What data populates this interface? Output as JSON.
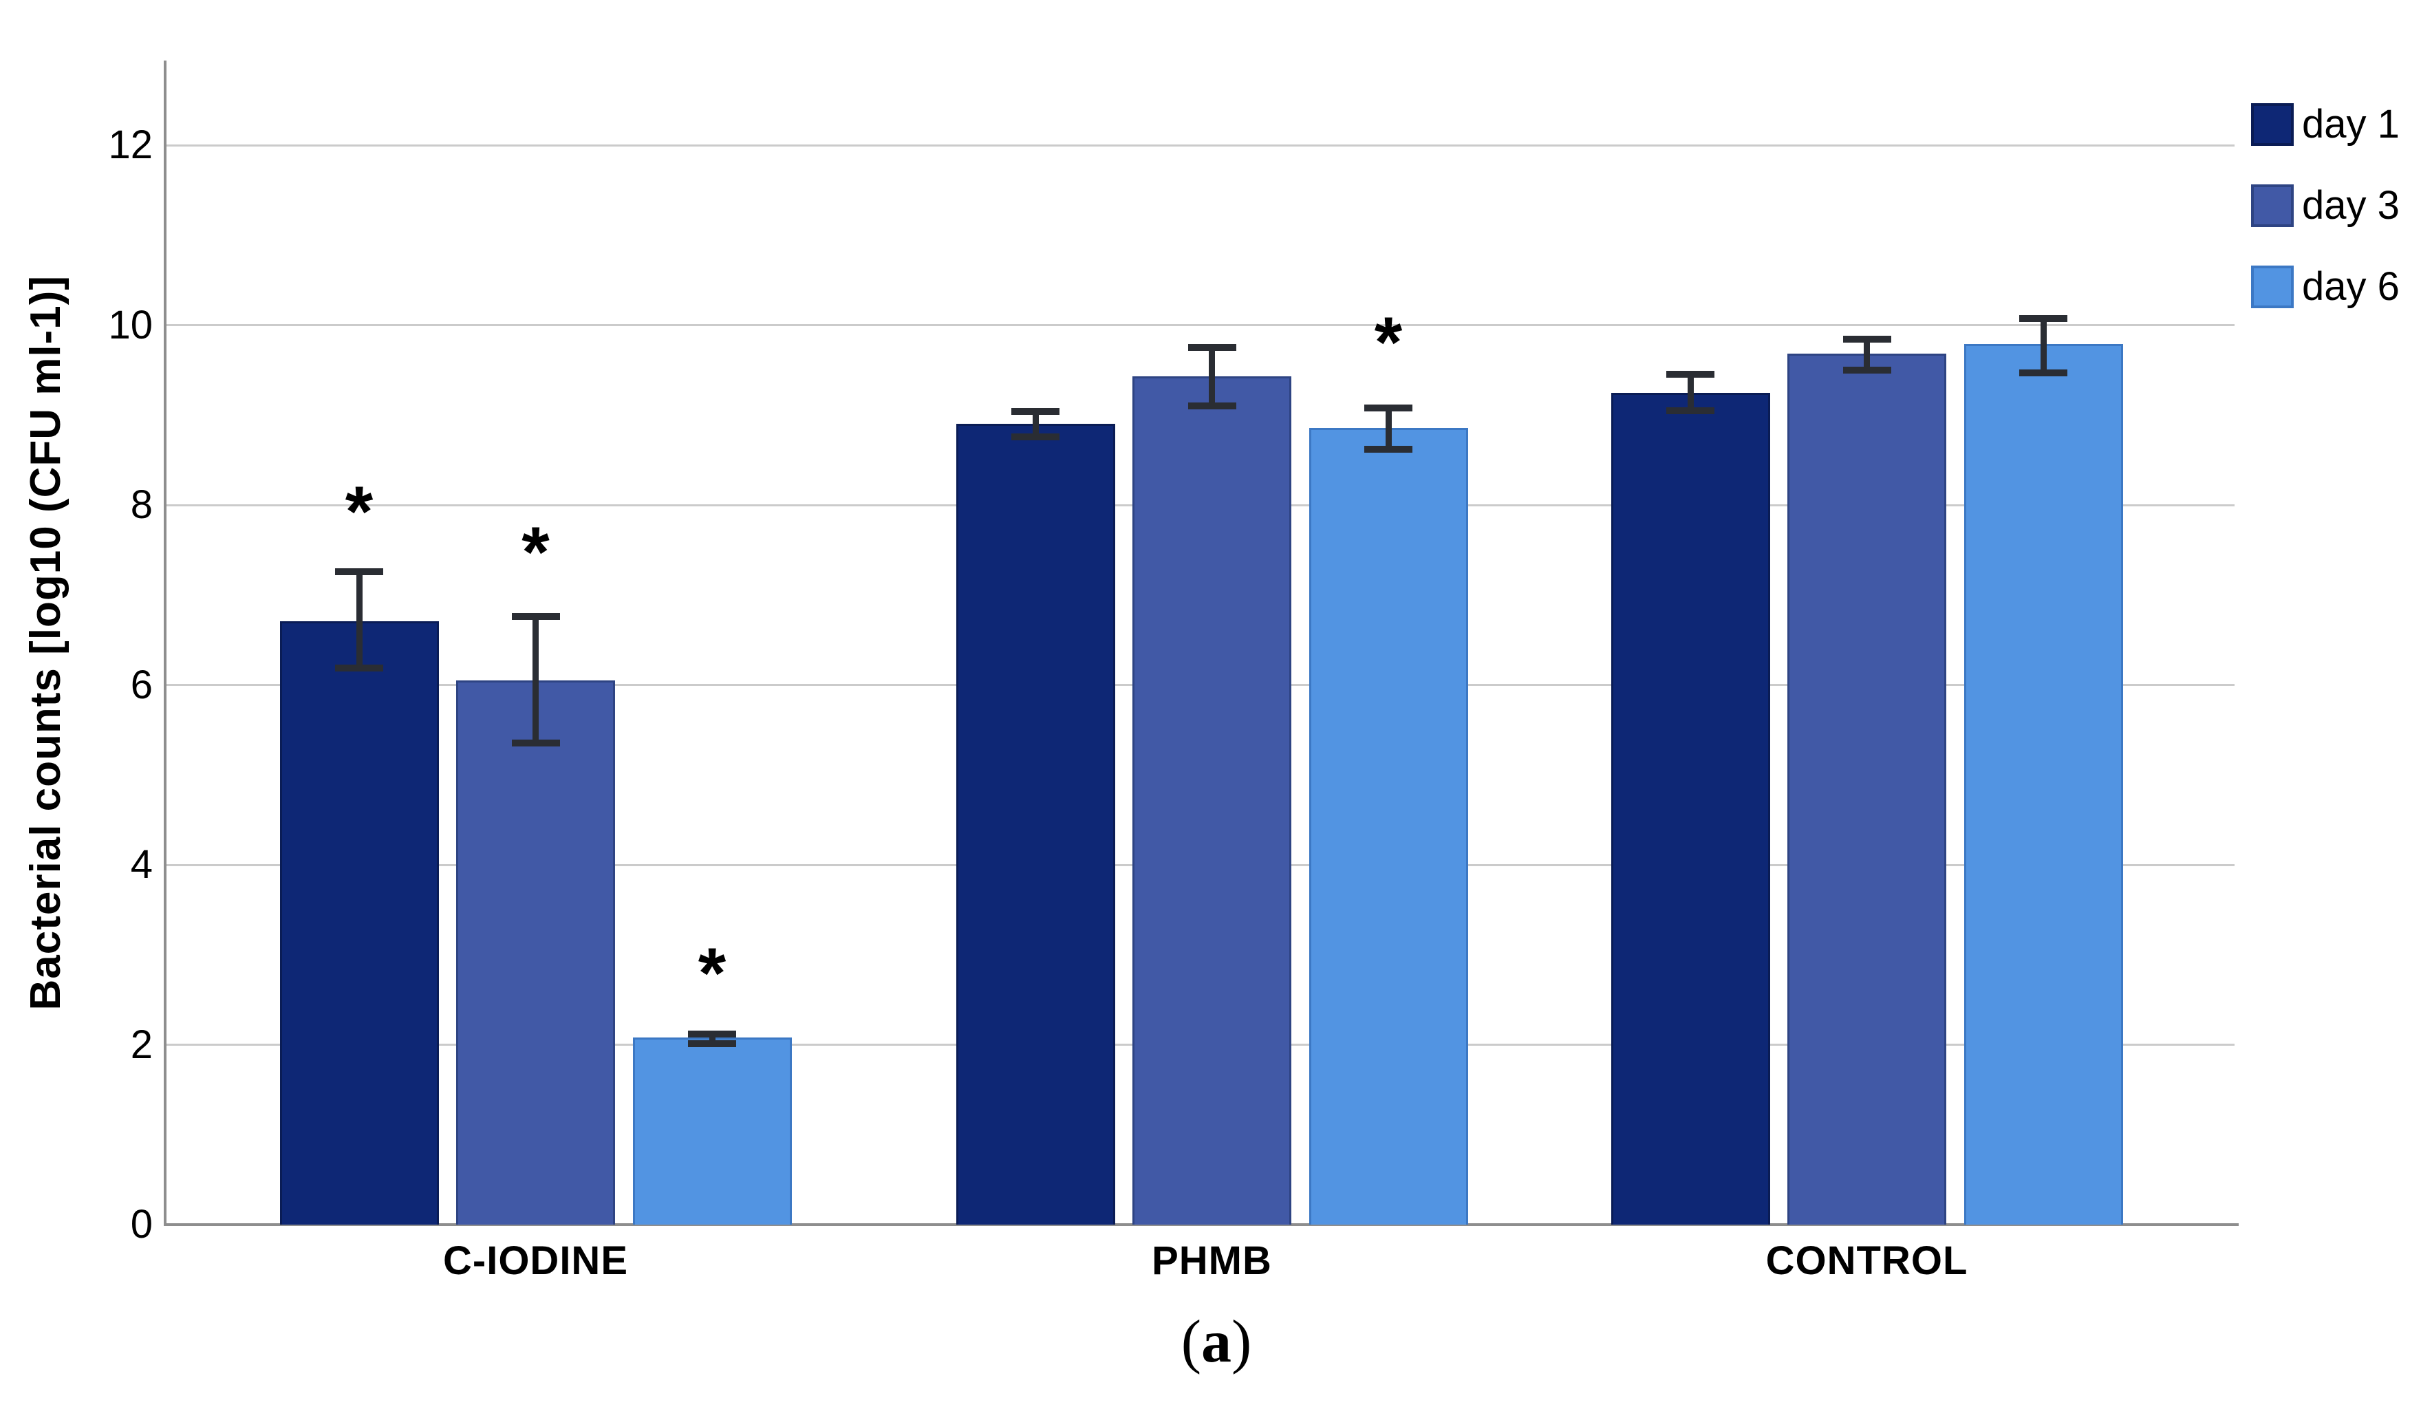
{
  "figure": {
    "background": "#ffffff",
    "caption": {
      "open": "(",
      "label": "a",
      "close": ")"
    }
  },
  "chart_data": {
    "type": "bar",
    "title": "",
    "xlabel": "",
    "ylabel": "Bacterial counts [log10 (CFU ml-1)]",
    "ylim": [
      0,
      12.94
    ],
    "yticks": [
      0,
      2,
      4,
      6,
      8,
      10,
      12
    ],
    "grid": "horizontal-only",
    "legend_position": "top-right",
    "categories": [
      "C-IODINE",
      "PHMB",
      "CONTROL"
    ],
    "series": [
      {
        "name": "day 1",
        "color": "#0e2775",
        "border_color": "#0a1c55",
        "values": [
          6.71,
          8.9,
          9.25
        ],
        "err_low": [
          6.19,
          8.76,
          9.05
        ],
        "err_high": [
          7.26,
          9.04,
          9.45
        ]
      },
      {
        "name": "day 3",
        "color": "#4159a6",
        "border_color": "#2e4483",
        "values": [
          6.05,
          9.43,
          9.68
        ],
        "err_low": [
          5.35,
          9.1,
          9.5
        ],
        "err_high": [
          6.76,
          9.75,
          9.84
        ]
      },
      {
        "name": "day 6",
        "color": "#5294e2",
        "border_color": "#3c78c4",
        "values": [
          2.08,
          8.86,
          9.79
        ],
        "err_low": [
          2.01,
          8.62,
          9.47
        ],
        "err_high": [
          2.12,
          9.08,
          10.07
        ]
      }
    ],
    "significance_markers": [
      {
        "category": "C-IODINE",
        "series": "day 1",
        "marker": "*",
        "y": 7.97
      },
      {
        "category": "C-IODINE",
        "series": "day 3",
        "marker": "*",
        "y": 7.52
      },
      {
        "category": "C-IODINE",
        "series": "day 6",
        "marker": "*",
        "y": 2.84
      },
      {
        "category": "PHMB",
        "series": "day 6",
        "marker": "*",
        "y": 9.85
      }
    ],
    "colors": {
      "gridline": "#cbcbcb",
      "axis": "#8e8e8e",
      "error_bar": "#2a2d33",
      "text": "#000000"
    }
  }
}
